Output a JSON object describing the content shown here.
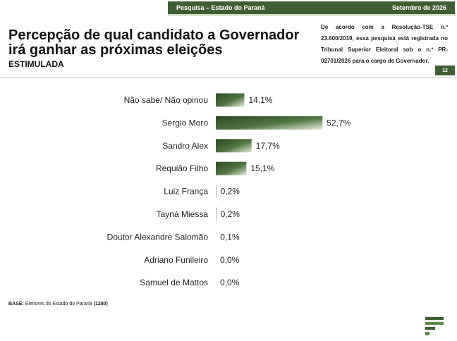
{
  "header": {
    "survey_label": "Pesquisa – Estado do Paraná",
    "date_label": "Setembro de 2026",
    "page_number": "12"
  },
  "title": {
    "line1": "Percepção de qual candidato a Governador",
    "line2": "irá ganhar as próximas eleições",
    "subtitle": "ESTIMULADA"
  },
  "registration_note": "De acordo com a Resolução-TSE n.º 23.600/2019, essa pesquisa está registrada no Tribunal Superior Eleitoral sob o n.º PR-02701/2026 para o cargo de Governador.",
  "footer": {
    "base_label": "BASE:",
    "base_text": "Eleitores do Estado do Paraná",
    "base_count": "(1280)"
  },
  "colors": {
    "brand_green": "#3f5f32",
    "bar_light": "#e3ecd8",
    "bar_dark": "#3f5f32"
  },
  "chart_data": {
    "type": "bar",
    "orientation": "horizontal",
    "categories": [
      "Não sabe/ Não opinou",
      "Sergio Moro",
      "Sandro Alex",
      "Requião Filho",
      "Luiz França",
      "Tayná Miessa",
      "Doutor Alexandre Salomão",
      "Adriano Funileiro",
      "Samuel de Mattos"
    ],
    "values": [
      14.1,
      52.7,
      17.7,
      15.1,
      0.2,
      0.2,
      0.1,
      0.0,
      0.0
    ],
    "value_labels": [
      "14,1%",
      "52,7%",
      "17,7%",
      "15,1%",
      "0,2%",
      "0,2%",
      "0,1%",
      "0,0%",
      "0,0%"
    ],
    "xlim": [
      0,
      60
    ],
    "grid": false,
    "legend": "none"
  }
}
